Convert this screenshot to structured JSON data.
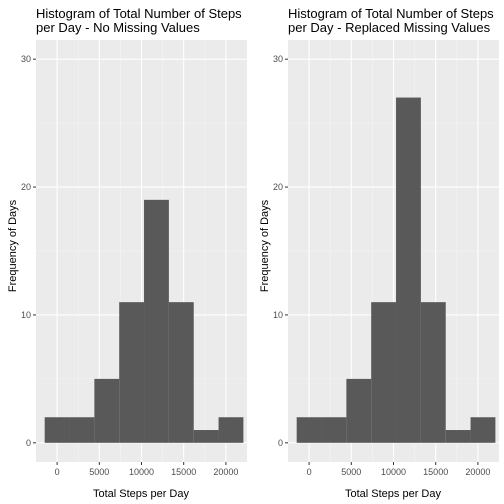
{
  "colors": {
    "panel_bg": "#ebebeb",
    "grid_major": "#ffffff",
    "grid_minor": "#f5f5f5",
    "bar_fill": "#595959",
    "tick": "#333333"
  },
  "chart_data": [
    {
      "type": "bar",
      "title_line1": "Histogram of Total Number of Steps",
      "title_line2": "per Day - No Missing Values",
      "xlabel": "Total Steps per Day",
      "ylabel": "Frequency of Days",
      "xlim": [
        -2500,
        22500
      ],
      "ylim": [
        -1.5,
        31.5
      ],
      "x_ticks": [
        0,
        5000,
        10000,
        15000,
        20000
      ],
      "y_ticks": [
        0,
        10,
        20,
        30
      ],
      "bin_width": 2943,
      "bins": [
        {
          "x0": -1472,
          "x1": 1472,
          "count": 2
        },
        {
          "x0": 1472,
          "x1": 4415,
          "count": 2
        },
        {
          "x0": 4415,
          "x1": 7358,
          "count": 5
        },
        {
          "x0": 7358,
          "x1": 10300,
          "count": 11
        },
        {
          "x0": 10300,
          "x1": 13245,
          "count": 19
        },
        {
          "x0": 13245,
          "x1": 16188,
          "count": 11
        },
        {
          "x0": 16188,
          "x1": 19130,
          "count": 1
        },
        {
          "x0": 19130,
          "x1": 22073,
          "count": 2
        }
      ]
    },
    {
      "type": "bar",
      "title_line1": "Histogram of Total Number of Steps",
      "title_line2": "per Day - Replaced Missing Values",
      "xlabel": "Total Steps per Day",
      "ylabel": "Frequency of Days",
      "xlim": [
        -2500,
        22500
      ],
      "ylim": [
        -1.5,
        31.5
      ],
      "x_ticks": [
        0,
        5000,
        10000,
        15000,
        20000
      ],
      "y_ticks": [
        0,
        10,
        20,
        30
      ],
      "bin_width": 2943,
      "bins": [
        {
          "x0": -1472,
          "x1": 1472,
          "count": 2
        },
        {
          "x0": 1472,
          "x1": 4415,
          "count": 2
        },
        {
          "x0": 4415,
          "x1": 7358,
          "count": 5
        },
        {
          "x0": 7358,
          "x1": 10300,
          "count": 11
        },
        {
          "x0": 10300,
          "x1": 13245,
          "count": 27
        },
        {
          "x0": 13245,
          "x1": 16188,
          "count": 11
        },
        {
          "x0": 16188,
          "x1": 19130,
          "count": 1
        },
        {
          "x0": 19130,
          "x1": 22073,
          "count": 2
        }
      ]
    }
  ]
}
